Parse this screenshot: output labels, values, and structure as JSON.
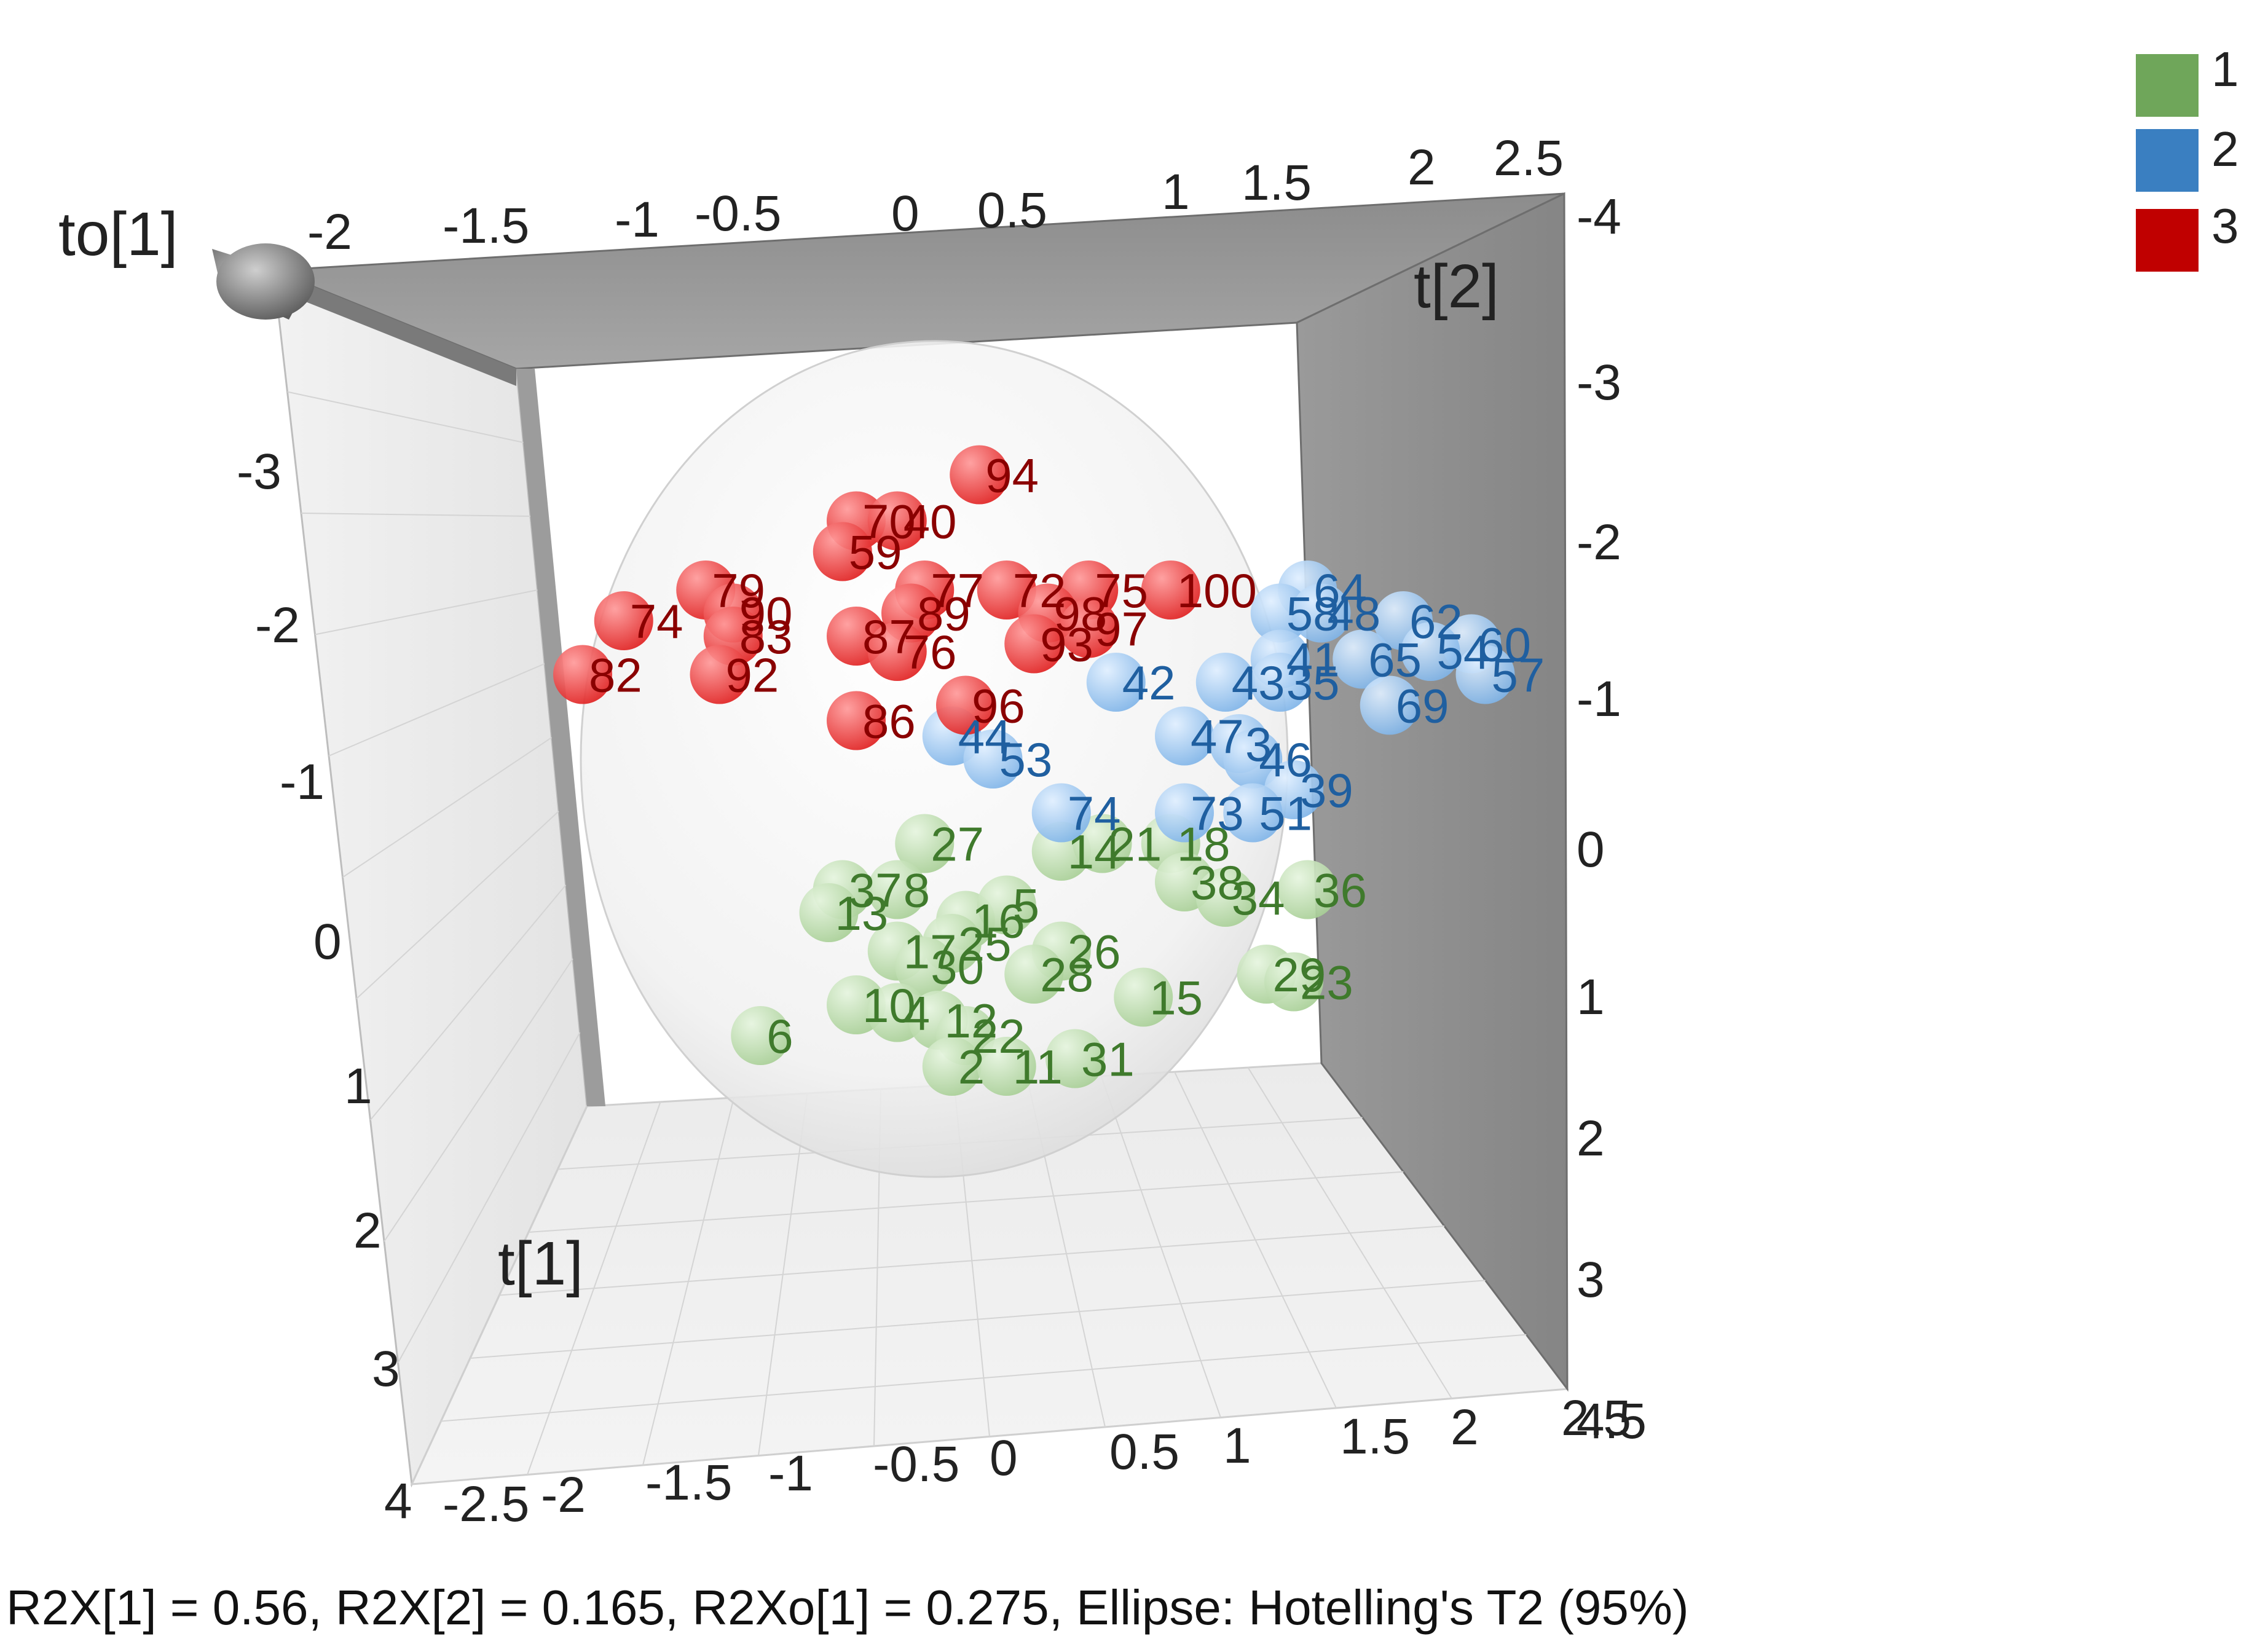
{
  "chart_data": {
    "type": "scatter",
    "projection": "3d",
    "axes": {
      "x": {
        "label": "t[1]",
        "ticks": [
          "-2.5",
          "-2",
          "-1.5",
          "-1",
          "-0.5",
          "0",
          "0.5",
          "1",
          "1.5",
          "2",
          "2.5"
        ]
      },
      "y": {
        "label": "t[2]",
        "ticks": [
          "-4",
          "-3",
          "-2",
          "-1",
          "0",
          "1",
          "2",
          "3",
          "4.5"
        ]
      },
      "z": {
        "label": "to[1]",
        "ticks": [
          "-3",
          "-2",
          "-1",
          "0",
          "1",
          "2",
          "3",
          "4"
        ]
      }
    },
    "legend": {
      "placement": "top-right",
      "entries": [
        "1",
        "2",
        "3"
      ]
    },
    "colors": {
      "1": "#6fa65a",
      "2": "#3a7fc1",
      "3": "#c00000"
    },
    "ellipse": "Hotelling's T2 (95%)",
    "series": [
      {
        "name": "1",
        "points": [
          {
            "id": "27",
            "x": -0.35,
            "y": 0.05
          },
          {
            "id": "14",
            "x": 0.15,
            "y": 0.1
          },
          {
            "id": "21",
            "x": 0.3,
            "y": 0.05
          },
          {
            "id": "18",
            "x": 0.55,
            "y": 0.05
          },
          {
            "id": "37",
            "x": -0.65,
            "y": 0.35
          },
          {
            "id": "8",
            "x": -0.45,
            "y": 0.35
          },
          {
            "id": "38",
            "x": 0.6,
            "y": 0.3
          },
          {
            "id": "36",
            "x": 1.05,
            "y": 0.35
          },
          {
            "id": "34",
            "x": 0.75,
            "y": 0.4
          },
          {
            "id": "13",
            "x": -0.7,
            "y": 0.5
          },
          {
            "id": "16",
            "x": -0.2,
            "y": 0.55
          },
          {
            "id": "5",
            "x": -0.05,
            "y": 0.45
          },
          {
            "id": "17",
            "x": -0.45,
            "y": 0.75
          },
          {
            "id": "25",
            "x": -0.25,
            "y": 0.7
          },
          {
            "id": "26",
            "x": 0.15,
            "y": 0.75
          },
          {
            "id": "30",
            "x": -0.35,
            "y": 0.85
          },
          {
            "id": "28",
            "x": 0.05,
            "y": 0.9
          },
          {
            "id": "29",
            "x": 0.9,
            "y": 0.9
          },
          {
            "id": "23",
            "x": 1.0,
            "y": 0.95
          },
          {
            "id": "15",
            "x": 0.45,
            "y": 1.05
          },
          {
            "id": "10",
            "x": -0.6,
            "y": 1.1
          },
          {
            "id": "4",
            "x": -0.45,
            "y": 1.15
          },
          {
            "id": "12",
            "x": -0.3,
            "y": 1.2
          },
          {
            "id": "6",
            "x": -0.95,
            "y": 1.3
          },
          {
            "id": "22",
            "x": -0.2,
            "y": 1.3
          },
          {
            "id": "2",
            "x": -0.25,
            "y": 1.5
          },
          {
            "id": "11",
            "x": -0.05,
            "y": 1.5
          },
          {
            "id": "31",
            "x": 0.2,
            "y": 1.45
          }
        ]
      },
      {
        "name": "2",
        "points": [
          {
            "id": "64",
            "x": 1.05,
            "y": -1.6
          },
          {
            "id": "58",
            "x": 0.95,
            "y": -1.45
          },
          {
            "id": "48",
            "x": 1.1,
            "y": -1.45
          },
          {
            "id": "62",
            "x": 1.4,
            "y": -1.4
          },
          {
            "id": "60",
            "x": 1.65,
            "y": -1.25
          },
          {
            "id": "54",
            "x": 1.5,
            "y": -1.2
          },
          {
            "id": "41",
            "x": 0.95,
            "y": -1.15
          },
          {
            "id": "65",
            "x": 1.25,
            "y": -1.15
          },
          {
            "id": "57",
            "x": 1.7,
            "y": -1.05
          },
          {
            "id": "42",
            "x": 0.35,
            "y": -1.0
          },
          {
            "id": "43",
            "x": 0.75,
            "y": -1.0
          },
          {
            "id": "35",
            "x": 0.95,
            "y": -1.0
          },
          {
            "id": "69",
            "x": 1.35,
            "y": -0.85
          },
          {
            "id": "44",
            "x": -0.25,
            "y": -0.65
          },
          {
            "id": "47",
            "x": 0.6,
            "y": -0.65
          },
          {
            "id": "3",
            "x": 0.8,
            "y": -0.6
          },
          {
            "id": "53",
            "x": -0.1,
            "y": -0.5
          },
          {
            "id": "46",
            "x": 0.85,
            "y": -0.5
          },
          {
            "id": "39",
            "x": 1.0,
            "y": -0.3
          },
          {
            "id": "74",
            "x": 0.15,
            "y": -0.15
          },
          {
            "id": "73",
            "x": 0.6,
            "y": -0.15
          },
          {
            "id": "51",
            "x": 0.85,
            "y": -0.15
          }
        ]
      },
      {
        "name": "3",
        "points": [
          {
            "id": "94",
            "x": -0.15,
            "y": -2.35
          },
          {
            "id": "70",
            "x": -0.6,
            "y": -2.05
          },
          {
            "id": "40",
            "x": -0.45,
            "y": -2.05
          },
          {
            "id": "59",
            "x": -0.65,
            "y": -1.85
          },
          {
            "id": "79",
            "x": -1.15,
            "y": -1.6
          },
          {
            "id": "77",
            "x": -0.35,
            "y": -1.6
          },
          {
            "id": "72",
            "x": -0.05,
            "y": -1.6
          },
          {
            "id": "75",
            "x": 0.25,
            "y": -1.6
          },
          {
            "id": "100",
            "x": 0.55,
            "y": -1.6
          },
          {
            "id": "90",
            "x": -1.05,
            "y": -1.45
          },
          {
            "id": "89",
            "x": -0.4,
            "y": -1.45
          },
          {
            "id": "98",
            "x": 0.1,
            "y": -1.45
          },
          {
            "id": "74",
            "x": -1.45,
            "y": -1.4
          },
          {
            "id": "83",
            "x": -1.05,
            "y": -1.3
          },
          {
            "id": "87",
            "x": -0.6,
            "y": -1.3
          },
          {
            "id": "97",
            "x": 0.25,
            "y": -1.35
          },
          {
            "id": "93",
            "x": 0.05,
            "y": -1.25
          },
          {
            "id": "76",
            "x": -0.45,
            "y": -1.2
          },
          {
            "id": "82",
            "x": -1.6,
            "y": -1.05
          },
          {
            "id": "92",
            "x": -1.1,
            "y": -1.05
          },
          {
            "id": "96",
            "x": -0.2,
            "y": -0.85
          },
          {
            "id": "86",
            "x": -0.6,
            "y": -0.75
          }
        ]
      }
    ]
  },
  "footer": "R2X[1] = 0.56, R2X[2] = 0.165, R2Xo[1] = 0.275, Ellipse: Hotelling's T2 (95%)"
}
